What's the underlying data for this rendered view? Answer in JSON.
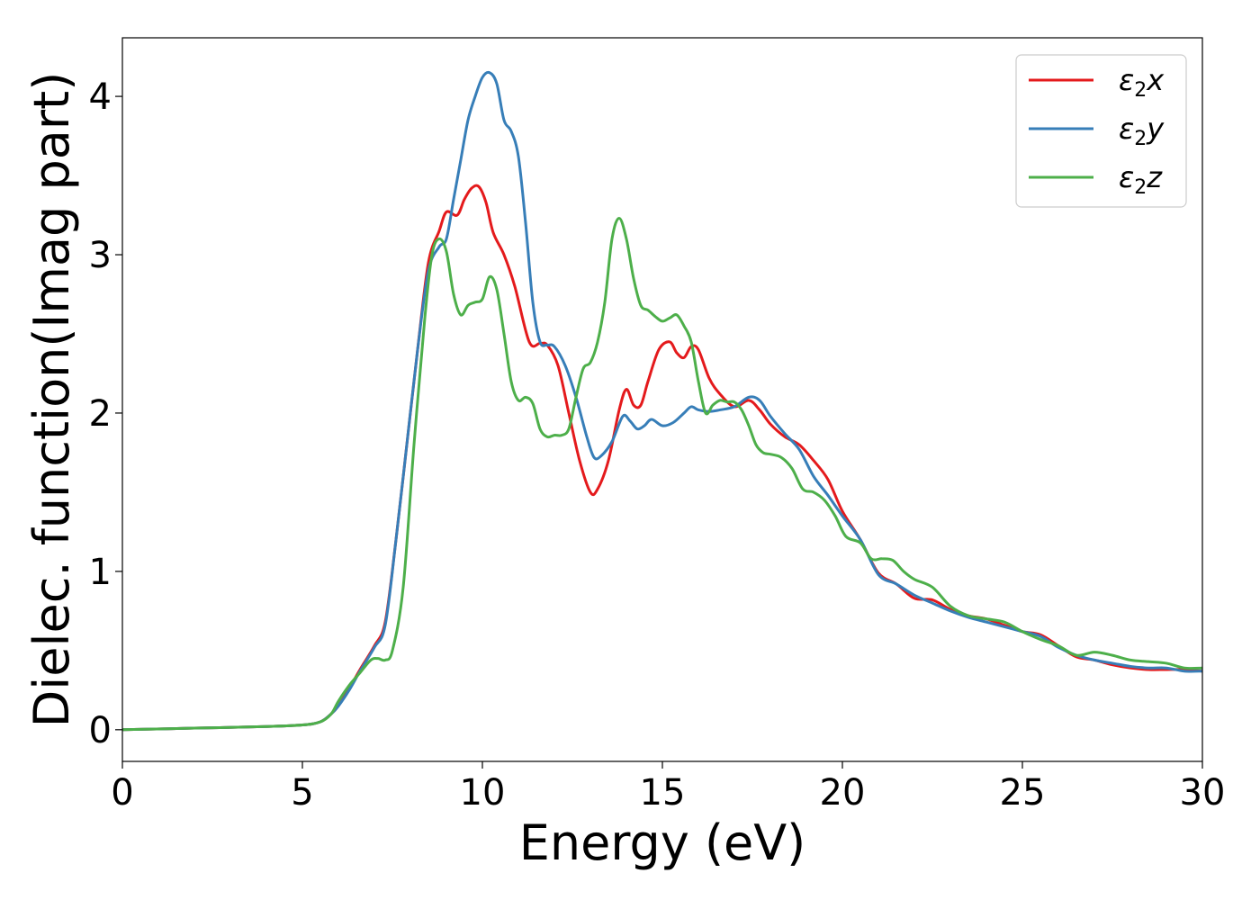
{
  "chart_data": {
    "type": "line",
    "title": "",
    "xlabel": "Energy (eV)",
    "ylabel": "Dielec. function(Imag part)",
    "xlim": [
      0,
      30
    ],
    "ylim": [
      -0.2,
      4.37
    ],
    "xticks": [
      0,
      5,
      10,
      15,
      20,
      25,
      30
    ],
    "yticks": [
      0,
      1,
      2,
      3,
      4
    ],
    "grid": false,
    "legend_position": "top-right",
    "series": [
      {
        "name": "ε2x",
        "legend_base": "ε",
        "legend_sub": "2",
        "legend_suffix": "x",
        "color": "#e41a1c",
        "x": [
          0,
          2,
          4,
          5,
          5.5,
          5.8,
          6.0,
          6.3,
          6.6,
          7.0,
          7.3,
          7.6,
          7.9,
          8.2,
          8.5,
          8.8,
          9.0,
          9.3,
          9.5,
          9.7,
          9.9,
          10.1,
          10.3,
          10.6,
          10.9,
          11.3,
          11.6,
          11.8,
          12.1,
          12.4,
          12.7,
          13.0,
          13.2,
          13.5,
          13.8,
          14.0,
          14.2,
          14.4,
          14.6,
          14.9,
          15.2,
          15.4,
          15.6,
          15.8,
          16.0,
          16.3,
          16.6,
          17.0,
          17.4,
          17.7,
          18.0,
          18.4,
          18.8,
          19.2,
          19.6,
          20.0,
          20.5,
          21.0,
          21.5,
          22.0,
          22.5,
          23.0,
          23.5,
          24.0,
          24.5,
          25.0,
          25.5,
          26.0,
          26.5,
          27.0,
          27.5,
          28.0,
          28.5,
          29.0,
          29.5,
          30.0
        ],
        "y": [
          0,
          0.01,
          0.02,
          0.03,
          0.05,
          0.1,
          0.15,
          0.26,
          0.38,
          0.53,
          0.68,
          1.2,
          1.8,
          2.4,
          2.95,
          3.15,
          3.27,
          3.25,
          3.35,
          3.42,
          3.43,
          3.33,
          3.14,
          3.0,
          2.8,
          2.45,
          2.44,
          2.43,
          2.3,
          2.0,
          1.7,
          1.5,
          1.52,
          1.7,
          2.02,
          2.15,
          2.05,
          2.05,
          2.2,
          2.4,
          2.45,
          2.38,
          2.35,
          2.42,
          2.4,
          2.22,
          2.12,
          2.04,
          2.08,
          2.02,
          1.93,
          1.85,
          1.8,
          1.7,
          1.58,
          1.38,
          1.2,
          0.99,
          0.92,
          0.83,
          0.82,
          0.76,
          0.72,
          0.7,
          0.66,
          0.62,
          0.6,
          0.53,
          0.46,
          0.44,
          0.41,
          0.39,
          0.38,
          0.38,
          0.38,
          0.37
        ]
      },
      {
        "name": "ε2y",
        "legend_base": "ε",
        "legend_sub": "2",
        "legend_suffix": "y",
        "color": "#377eb8",
        "x": [
          0,
          2,
          4,
          5,
          5.5,
          5.8,
          6.0,
          6.3,
          6.6,
          7.0,
          7.3,
          7.6,
          7.9,
          8.2,
          8.5,
          8.8,
          9.0,
          9.2,
          9.4,
          9.6,
          9.8,
          10.0,
          10.2,
          10.4,
          10.6,
          10.8,
          11.0,
          11.2,
          11.4,
          11.6,
          11.8,
          12.0,
          12.3,
          12.6,
          12.9,
          13.1,
          13.3,
          13.6,
          13.9,
          14.1,
          14.3,
          14.5,
          14.7,
          15.0,
          15.3,
          15.6,
          15.8,
          16.0,
          16.3,
          16.6,
          17.0,
          17.4,
          17.7,
          18.0,
          18.4,
          18.8,
          19.2,
          19.6,
          20.0,
          20.5,
          21.0,
          21.5,
          22.0,
          22.5,
          23.0,
          23.5,
          24.0,
          24.5,
          25.0,
          25.5,
          26.0,
          26.5,
          27.0,
          27.5,
          28.0,
          28.5,
          29.0,
          29.5,
          30.0
        ],
        "y": [
          0,
          0.01,
          0.02,
          0.03,
          0.05,
          0.1,
          0.15,
          0.25,
          0.37,
          0.52,
          0.66,
          1.2,
          1.8,
          2.4,
          2.9,
          3.05,
          3.1,
          3.35,
          3.6,
          3.85,
          4.0,
          4.12,
          4.15,
          4.08,
          3.85,
          3.78,
          3.62,
          3.2,
          2.7,
          2.45,
          2.43,
          2.42,
          2.3,
          2.1,
          1.85,
          1.72,
          1.73,
          1.82,
          1.98,
          1.95,
          1.9,
          1.92,
          1.96,
          1.92,
          1.94,
          2.0,
          2.04,
          2.02,
          2.01,
          2.02,
          2.04,
          2.1,
          2.08,
          1.98,
          1.87,
          1.77,
          1.6,
          1.48,
          1.35,
          1.2,
          0.98,
          0.92,
          0.85,
          0.8,
          0.75,
          0.71,
          0.68,
          0.65,
          0.62,
          0.59,
          0.52,
          0.47,
          0.44,
          0.42,
          0.4,
          0.39,
          0.39,
          0.37,
          0.37
        ]
      },
      {
        "name": "ε2z",
        "legend_base": "ε",
        "legend_sub": "2",
        "legend_suffix": "z",
        "color": "#4daf4a",
        "x": [
          0,
          2,
          4,
          5,
          5.5,
          5.8,
          6.0,
          6.3,
          6.6,
          6.9,
          7.1,
          7.3,
          7.5,
          7.8,
          8.1,
          8.4,
          8.6,
          8.8,
          9.0,
          9.2,
          9.4,
          9.6,
          9.8,
          10.0,
          10.2,
          10.4,
          10.6,
          10.8,
          11.0,
          11.2,
          11.4,
          11.6,
          11.8,
          12.0,
          12.2,
          12.4,
          12.6,
          12.8,
          13.0,
          13.2,
          13.4,
          13.6,
          13.8,
          14.0,
          14.2,
          14.4,
          14.6,
          14.8,
          15.0,
          15.2,
          15.4,
          15.6,
          15.8,
          16.0,
          16.2,
          16.4,
          16.6,
          16.8,
          17.0,
          17.2,
          17.4,
          17.6,
          17.8,
          18.0,
          18.3,
          18.6,
          18.9,
          19.2,
          19.5,
          19.8,
          20.1,
          20.5,
          20.8,
          21.1,
          21.4,
          21.7,
          22.0,
          22.5,
          23.0,
          23.5,
          24.0,
          24.5,
          25.0,
          25.5,
          26.0,
          26.5,
          27.0,
          27.5,
          28.0,
          28.5,
          29.0,
          29.5,
          30.0
        ],
        "y": [
          0,
          0.01,
          0.02,
          0.03,
          0.05,
          0.1,
          0.18,
          0.28,
          0.36,
          0.44,
          0.45,
          0.44,
          0.5,
          0.9,
          1.8,
          2.6,
          3.0,
          3.1,
          3.02,
          2.75,
          2.62,
          2.68,
          2.7,
          2.72,
          2.86,
          2.78,
          2.5,
          2.2,
          2.08,
          2.1,
          2.06,
          1.9,
          1.85,
          1.86,
          1.86,
          1.9,
          2.1,
          2.28,
          2.32,
          2.45,
          2.7,
          3.1,
          3.23,
          3.1,
          2.85,
          2.68,
          2.65,
          2.61,
          2.58,
          2.6,
          2.62,
          2.55,
          2.45,
          2.2,
          2.0,
          2.05,
          2.08,
          2.07,
          2.07,
          2.02,
          1.92,
          1.8,
          1.75,
          1.74,
          1.72,
          1.65,
          1.52,
          1.5,
          1.45,
          1.35,
          1.22,
          1.18,
          1.08,
          1.08,
          1.07,
          1.0,
          0.95,
          0.9,
          0.78,
          0.72,
          0.7,
          0.68,
          0.62,
          0.57,
          0.53,
          0.47,
          0.49,
          0.47,
          0.44,
          0.43,
          0.42,
          0.39,
          0.39
        ]
      }
    ]
  }
}
